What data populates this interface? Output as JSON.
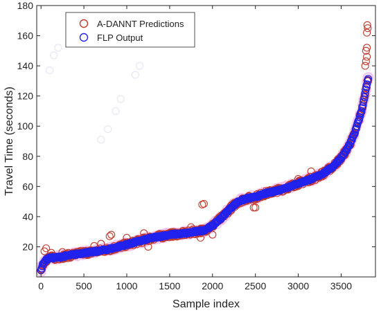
{
  "chart_data": {
    "type": "scatter",
    "xlabel": "Sample index",
    "ylabel": "Travel Time (seconds)",
    "xlim": [
      -50,
      3900
    ],
    "ylim": [
      0,
      180
    ],
    "x_ticks": [
      0,
      500,
      1000,
      1500,
      2000,
      2500,
      3000,
      3500
    ],
    "y_ticks": [
      20,
      40,
      60,
      80,
      100,
      120,
      140,
      160,
      180
    ],
    "grid": false,
    "legend_position": "top-left",
    "n_samples": 3820,
    "series": [
      {
        "name": "A-DANNT Predictions",
        "marker": "open-circle",
        "color": "#c0392b",
        "trend_points": [
          [
            0,
            5
          ],
          [
            20,
            8
          ],
          [
            50,
            11
          ],
          [
            100,
            12.5
          ],
          [
            200,
            13
          ],
          [
            300,
            14
          ],
          [
            400,
            15
          ],
          [
            500,
            16
          ],
          [
            600,
            16.5
          ],
          [
            700,
            17.5
          ],
          [
            800,
            18.5
          ],
          [
            900,
            20
          ],
          [
            1000,
            21.5
          ],
          [
            1100,
            23
          ],
          [
            1200,
            24.5
          ],
          [
            1300,
            26
          ],
          [
            1400,
            27
          ],
          [
            1500,
            28
          ],
          [
            1600,
            28.5
          ],
          [
            1700,
            29
          ],
          [
            1800,
            30
          ],
          [
            1900,
            31
          ],
          [
            2000,
            34
          ],
          [
            2100,
            39
          ],
          [
            2200,
            45
          ],
          [
            2300,
            50
          ],
          [
            2400,
            52
          ],
          [
            2500,
            53
          ],
          [
            2600,
            55
          ],
          [
            2700,
            56.5
          ],
          [
            2800,
            58
          ],
          [
            2900,
            60
          ],
          [
            3000,
            62
          ],
          [
            3100,
            64
          ],
          [
            3200,
            66
          ],
          [
            3300,
            69
          ],
          [
            3400,
            73
          ],
          [
            3500,
            79
          ],
          [
            3550,
            83
          ],
          [
            3600,
            88
          ],
          [
            3650,
            94
          ],
          [
            3700,
            103
          ],
          [
            3750,
            113
          ],
          [
            3780,
            122
          ],
          [
            3800,
            128
          ],
          [
            3810,
            131
          ]
        ],
        "outliers": [
          [
            40,
            17
          ],
          [
            60,
            19
          ],
          [
            120,
            16
          ],
          [
            250,
            16.5
          ],
          [
            620,
            20.5
          ],
          [
            700,
            22
          ],
          [
            800,
            27
          ],
          [
            820,
            28
          ],
          [
            1000,
            26
          ],
          [
            1200,
            29
          ],
          [
            1250,
            20
          ],
          [
            1380,
            27
          ],
          [
            1750,
            33
          ],
          [
            1860,
            26
          ],
          [
            1880,
            48
          ],
          [
            1900,
            48.5
          ],
          [
            1950,
            33
          ],
          [
            2000,
            28
          ],
          [
            2480,
            46
          ],
          [
            2500,
            46
          ],
          [
            3000,
            65
          ],
          [
            3150,
            70
          ],
          [
            3780,
            140
          ],
          [
            3790,
            143
          ],
          [
            3800,
            146
          ],
          [
            3790,
            150
          ],
          [
            3800,
            152
          ],
          [
            3800,
            162
          ],
          [
            3810,
            165
          ],
          [
            3805,
            167
          ]
        ]
      },
      {
        "name": "FLP Output",
        "marker": "open-circle",
        "color": "#2222ee",
        "trend_points": [
          [
            0,
            5
          ],
          [
            20,
            8
          ],
          [
            50,
            11
          ],
          [
            100,
            12.5
          ],
          [
            200,
            13
          ],
          [
            300,
            14
          ],
          [
            400,
            15
          ],
          [
            500,
            16
          ],
          [
            600,
            16.5
          ],
          [
            700,
            17.5
          ],
          [
            800,
            18.5
          ],
          [
            900,
            20
          ],
          [
            1000,
            21.5
          ],
          [
            1100,
            23
          ],
          [
            1200,
            24.5
          ],
          [
            1300,
            26
          ],
          [
            1400,
            27
          ],
          [
            1500,
            28
          ],
          [
            1600,
            28.5
          ],
          [
            1700,
            29
          ],
          [
            1800,
            30
          ],
          [
            1900,
            31
          ],
          [
            2000,
            34
          ],
          [
            2100,
            39
          ],
          [
            2200,
            45
          ],
          [
            2300,
            50
          ],
          [
            2400,
            52
          ],
          [
            2500,
            53
          ],
          [
            2600,
            55
          ],
          [
            2700,
            56.5
          ],
          [
            2800,
            58
          ],
          [
            2900,
            60
          ],
          [
            3000,
            62
          ],
          [
            3100,
            64
          ],
          [
            3200,
            66
          ],
          [
            3300,
            69
          ],
          [
            3400,
            73
          ],
          [
            3500,
            79
          ],
          [
            3550,
            83
          ],
          [
            3600,
            88
          ],
          [
            3650,
            94
          ],
          [
            3700,
            103
          ],
          [
            3750,
            113
          ],
          [
            3780,
            122
          ],
          [
            3800,
            128
          ],
          [
            3810,
            131
          ]
        ]
      }
    ]
  }
}
